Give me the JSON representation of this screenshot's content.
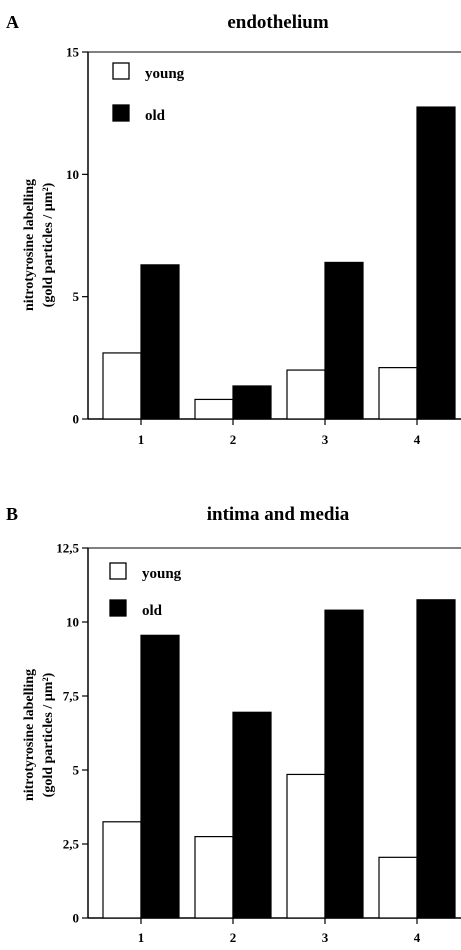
{
  "chart_data": [
    {
      "type": "bar",
      "panel": "A",
      "title": "endothelium",
      "ylabel_line1": "nitrotyrosine labelling",
      "ylabel_line2": "(gold particles / µm²)",
      "categories": [
        "1",
        "2",
        "3",
        "4"
      ],
      "series": [
        {
          "name": "young",
          "values": [
            2.7,
            0.8,
            2.0,
            2.1
          ],
          "color": "#ffffff"
        },
        {
          "name": "old",
          "values": [
            6.3,
            1.35,
            6.4,
            12.75
          ],
          "color": "#000000"
        }
      ],
      "ylim": [
        0,
        15
      ],
      "yticks": [
        0,
        5,
        10,
        15
      ],
      "ytick_labels": [
        "0",
        "5",
        "10",
        "15"
      ],
      "legend_position": "top-left",
      "grid": false
    },
    {
      "type": "bar",
      "panel": "B",
      "title": "intima and media",
      "ylabel_line1": "nitrotyrosine labelling",
      "ylabel_line2": "(gold particles / µm²)",
      "categories": [
        "1",
        "2",
        "3",
        "4"
      ],
      "series": [
        {
          "name": "young",
          "values": [
            3.25,
            2.75,
            4.85,
            2.05
          ],
          "color": "#ffffff"
        },
        {
          "name": "old",
          "values": [
            9.55,
            6.95,
            10.4,
            10.75
          ],
          "color": "#000000"
        }
      ],
      "ylim": [
        0,
        12.5
      ],
      "yticks": [
        0,
        2.5,
        5,
        7.5,
        10,
        12.5
      ],
      "ytick_labels": [
        "0",
        "2,5",
        "5",
        "7,5",
        "10",
        "12,5"
      ],
      "legend_position": "top-left",
      "grid": false
    }
  ]
}
